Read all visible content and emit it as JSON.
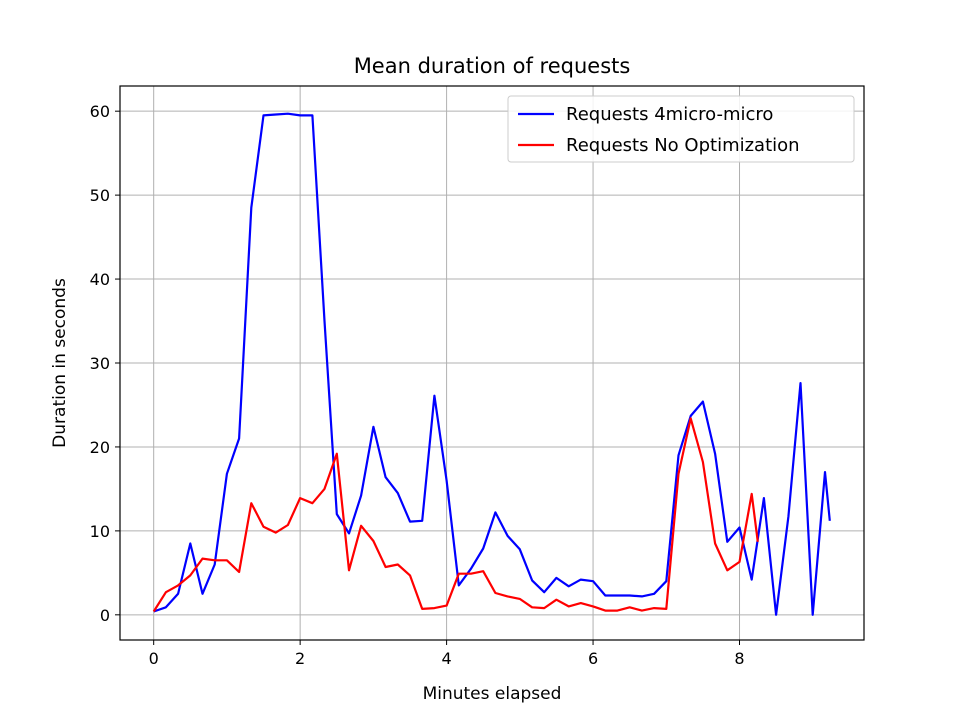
{
  "chart_data": {
    "type": "line",
    "title": "Mean duration of requests",
    "xlabel": "Minutes elapsed",
    "ylabel": "Duration in seconds",
    "xlim": [
      -0.46,
      9.7
    ],
    "ylim": [
      -3,
      63
    ],
    "xticks": [
      0,
      2,
      4,
      6,
      8
    ],
    "yticks": [
      0,
      10,
      20,
      30,
      40,
      50,
      60
    ],
    "grid": true,
    "legend_position": "top-right",
    "series": [
      {
        "name": "Requests 4micro-micro",
        "color": "#0000ff",
        "x": [
          0,
          0.167,
          0.333,
          0.5,
          0.667,
          0.833,
          1.0,
          1.167,
          1.333,
          1.5,
          1.667,
          1.833,
          2.0,
          2.167,
          2.333,
          2.5,
          2.667,
          2.833,
          3.0,
          3.167,
          3.333,
          3.5,
          3.667,
          3.833,
          4.0,
          4.167,
          4.333,
          4.5,
          4.667,
          4.833,
          5.0,
          5.167,
          5.333,
          5.5,
          5.667,
          5.833,
          6.0,
          6.167,
          6.333,
          6.5,
          6.667,
          6.833,
          7.0,
          7.167,
          7.333,
          7.5,
          7.667,
          7.833,
          8.0,
          8.167,
          8.333,
          8.5,
          8.667,
          8.833,
          9.0,
          9.167,
          9.233
        ],
        "y": [
          0.4,
          0.9,
          2.5,
          8.5,
          2.5,
          6.0,
          16.8,
          21.0,
          48.5,
          59.5,
          59.6,
          59.7,
          59.5,
          59.5,
          35.0,
          12.0,
          9.7,
          14.2,
          22.4,
          16.4,
          14.5,
          11.1,
          11.2,
          26.1,
          16.0,
          3.5,
          5.5,
          7.9,
          12.2,
          9.4,
          7.8,
          4.1,
          2.7,
          4.4,
          3.4,
          4.2,
          4.0,
          2.3,
          2.3,
          2.3,
          2.2,
          2.5,
          4.0,
          19.0,
          23.7,
          25.4,
          19.2,
          8.7,
          10.4,
          4.2,
          13.9,
          0.0,
          11.7,
          27.6,
          0.0,
          17.0,
          11.2
        ]
      },
      {
        "name": "Requests No Optimization",
        "color": "#ff0000",
        "x": [
          0,
          0.167,
          0.333,
          0.5,
          0.667,
          0.833,
          1.0,
          1.167,
          1.333,
          1.5,
          1.667,
          1.833,
          2.0,
          2.167,
          2.333,
          2.5,
          2.667,
          2.833,
          3.0,
          3.167,
          3.333,
          3.5,
          3.667,
          3.833,
          4.0,
          4.167,
          4.333,
          4.5,
          4.667,
          4.833,
          5.0,
          5.167,
          5.333,
          5.5,
          5.667,
          5.833,
          6.0,
          6.167,
          6.333,
          6.5,
          6.667,
          6.833,
          7.0,
          7.167,
          7.333,
          7.5,
          7.667,
          7.833,
          8.0,
          8.167,
          8.25
        ],
        "y": [
          0.4,
          2.7,
          3.5,
          4.7,
          6.7,
          6.5,
          6.5,
          5.1,
          13.3,
          10.5,
          9.8,
          10.7,
          13.9,
          13.3,
          15.0,
          19.2,
          5.3,
          10.6,
          8.8,
          5.7,
          6.0,
          4.7,
          0.7,
          0.8,
          1.1,
          4.9,
          4.9,
          5.2,
          2.6,
          2.2,
          1.9,
          0.9,
          0.8,
          1.8,
          1.0,
          1.4,
          1.0,
          0.5,
          0.5,
          0.9,
          0.5,
          0.8,
          0.7,
          16.8,
          23.4,
          18.2,
          8.5,
          5.3,
          6.3,
          14.4,
          8.7
        ]
      }
    ]
  }
}
